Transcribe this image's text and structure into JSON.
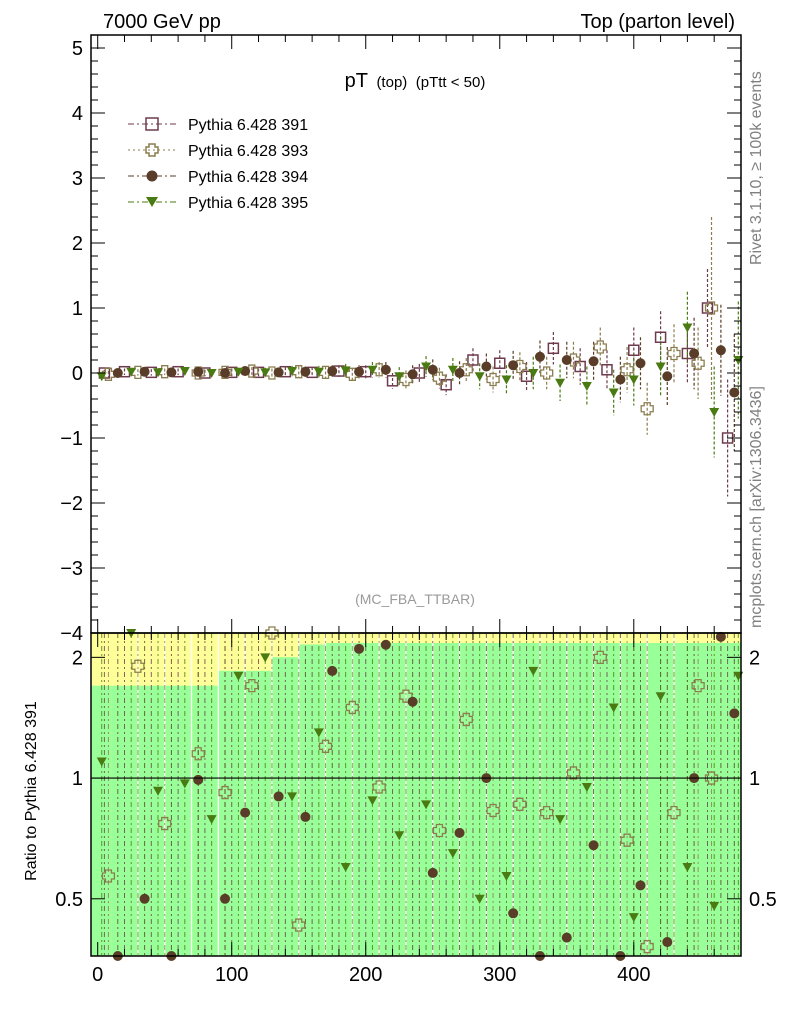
{
  "header": {
    "left": "7000 GeV pp",
    "right": "Top (parton level)"
  },
  "side_text": {
    "rivet": "Rivet 3.1.10, ≥ 100k events",
    "mcplots": "mcplots.cern.ch [arXiv:1306.3436]"
  },
  "plot_title": {
    "main": "pT",
    "sub1": "(top)",
    "sub2": "(pTtt < 50)"
  },
  "analysis_tag": "(MC_FBA_TTBAR)",
  "ratio_ylabel": "Ratio to Pythia 6.428 391",
  "legend": [
    {
      "label": "Pythia 6.428 391",
      "color": "#6e3b4e",
      "marker": "open-square"
    },
    {
      "label": "Pythia 6.428 393",
      "color": "#8c7d4f",
      "marker": "open-cross"
    },
    {
      "label": "Pythia 6.428 394",
      "color": "#5a3d28",
      "marker": "filled-circle"
    },
    {
      "label": "Pythia 6.428 395",
      "color": "#4a7a12",
      "marker": "filled-triangle-down"
    }
  ],
  "chart_data": {
    "type": "scatter",
    "title": "pT (top) (pTtt < 50)",
    "x_range": [
      -5,
      480
    ],
    "main": {
      "ylim": [
        -4,
        5.2
      ],
      "yticks": [
        -4,
        -3,
        -2,
        -1,
        0,
        1,
        2,
        3,
        4,
        5
      ],
      "ytick_labels": [
        "−4",
        "−3",
        "−2",
        "−1",
        "0",
        "1",
        "2",
        "3",
        "4",
        "5"
      ]
    },
    "ratio": {
      "ylim": [
        0.36,
        2.3
      ],
      "log": true,
      "yticks": [
        0.5,
        1,
        2
      ],
      "ytick_labels": [
        "0.5",
        "1",
        "2"
      ]
    },
    "xticks": [
      0,
      100,
      200,
      300,
      400
    ],
    "xtick_labels": [
      "0",
      "100",
      "200",
      "300",
      "400"
    ],
    "series": [
      {
        "name": "Pythia 6.428 391",
        "x": [
          5,
          20,
          40,
          60,
          80,
          100,
          120,
          140,
          160,
          180,
          200,
          220,
          240,
          260,
          280,
          300,
          320,
          340,
          360,
          380,
          400,
          420,
          440,
          455,
          470
        ],
        "y": [
          0.0,
          0.02,
          0.01,
          0.02,
          0.0,
          0.01,
          0.01,
          0.02,
          0.01,
          0.03,
          0.02,
          -0.12,
          0.0,
          -0.18,
          0.2,
          0.15,
          -0.05,
          0.38,
          0.1,
          0.05,
          0.35,
          0.55,
          0.3,
          1.0,
          -1.0
        ],
        "err": [
          0.05,
          0.05,
          0.05,
          0.05,
          0.05,
          0.06,
          0.06,
          0.07,
          0.08,
          0.09,
          0.1,
          0.12,
          0.14,
          0.16,
          0.18,
          0.2,
          0.22,
          0.25,
          0.28,
          0.3,
          0.35,
          0.4,
          0.45,
          0.6,
          0.9
        ],
        "ratio": [
          1,
          1,
          1,
          1,
          1,
          1,
          1,
          1,
          1,
          1,
          1,
          1,
          1,
          1,
          1,
          1,
          1,
          1,
          1,
          1,
          1,
          1,
          1,
          1,
          1
        ]
      },
      {
        "name": "Pythia 6.428 393",
        "x": [
          8,
          30,
          50,
          75,
          95,
          115,
          130,
          150,
          170,
          190,
          210,
          230,
          255,
          275,
          295,
          315,
          335,
          355,
          375,
          395,
          410,
          430,
          448,
          458
        ],
        "y": [
          -0.02,
          0.01,
          0.02,
          0.0,
          0.01,
          0.03,
          0.0,
          0.02,
          0.01,
          -0.02,
          0.05,
          -0.1,
          -0.08,
          0.05,
          -0.1,
          0.1,
          0.0,
          0.2,
          0.4,
          0.05,
          -0.55,
          0.3,
          0.15,
          1.0
        ],
        "err": [
          0.05,
          0.05,
          0.05,
          0.05,
          0.06,
          0.06,
          0.07,
          0.08,
          0.09,
          0.1,
          0.12,
          0.14,
          0.16,
          0.18,
          0.2,
          0.22,
          0.25,
          0.28,
          0.3,
          0.35,
          0.4,
          0.45,
          0.55,
          1.4
        ],
        "ratio": [
          0.57,
          1.9,
          0.77,
          1.15,
          0.92,
          1.7,
          2.3,
          0.43,
          1.2,
          1.5,
          0.95,
          1.6,
          0.74,
          1.4,
          0.83,
          0.86,
          0.82,
          1.03,
          2.0,
          0.7,
          0.38,
          0.82,
          1.7,
          1.0
        ]
      },
      {
        "name": "Pythia 6.428 394",
        "x": [
          15,
          35,
          55,
          75,
          95,
          110,
          135,
          155,
          175,
          195,
          215,
          235,
          250,
          270,
          290,
          310,
          330,
          350,
          370,
          390,
          405,
          425,
          445,
          465,
          475
        ],
        "y": [
          0.0,
          0.02,
          0.01,
          0.02,
          0.0,
          0.03,
          0.01,
          0.02,
          0.03,
          0.02,
          0.05,
          -0.02,
          0.05,
          0.0,
          0.1,
          0.12,
          0.25,
          0.2,
          0.18,
          -0.1,
          0.15,
          -0.05,
          0.3,
          0.35,
          -0.3
        ],
        "err": [
          0.05,
          0.05,
          0.05,
          0.05,
          0.06,
          0.06,
          0.07,
          0.08,
          0.09,
          0.1,
          0.12,
          0.14,
          0.16,
          0.18,
          0.2,
          0.22,
          0.25,
          0.28,
          0.3,
          0.35,
          0.4,
          0.45,
          0.55,
          0.7,
          0.9
        ],
        "ratio": [
          0.35,
          0.5,
          0.35,
          0.99,
          0.5,
          0.82,
          0.9,
          0.8,
          1.85,
          2.1,
          2.15,
          1.55,
          0.58,
          0.73,
          1.0,
          0.46,
          0.35,
          0.4,
          0.68,
          0.36,
          0.54,
          0.39,
          1.0,
          2.25,
          1.45
        ]
      },
      {
        "name": "Pythia 6.428 395",
        "x": [
          3,
          25,
          45,
          65,
          85,
          105,
          125,
          145,
          165,
          185,
          205,
          225,
          245,
          265,
          285,
          305,
          325,
          345,
          365,
          385,
          400,
          420,
          440,
          460,
          478
        ],
        "y": [
          -0.05,
          0.02,
          0.01,
          0.03,
          0.0,
          0.02,
          0.01,
          0.03,
          0.02,
          0.04,
          0.05,
          -0.05,
          0.1,
          0.05,
          -0.05,
          -0.1,
          0.0,
          -0.15,
          -0.2,
          -0.3,
          -0.1,
          0.1,
          0.7,
          -0.6,
          0.2
        ],
        "err": [
          0.05,
          0.05,
          0.05,
          0.05,
          0.06,
          0.06,
          0.07,
          0.08,
          0.09,
          0.1,
          0.12,
          0.14,
          0.16,
          0.18,
          0.2,
          0.22,
          0.25,
          0.28,
          0.3,
          0.35,
          0.4,
          0.45,
          0.55,
          0.7,
          0.9
        ],
        "ratio": [
          1.1,
          2.3,
          0.93,
          0.97,
          0.79,
          1.8,
          2.0,
          0.9,
          1.3,
          0.6,
          0.88,
          0.72,
          0.86,
          0.65,
          0.5,
          0.57,
          1.85,
          0.79,
          0.95,
          1.5,
          0.45,
          1.6,
          0.6,
          0.48,
          1.8
        ]
      }
    ]
  }
}
